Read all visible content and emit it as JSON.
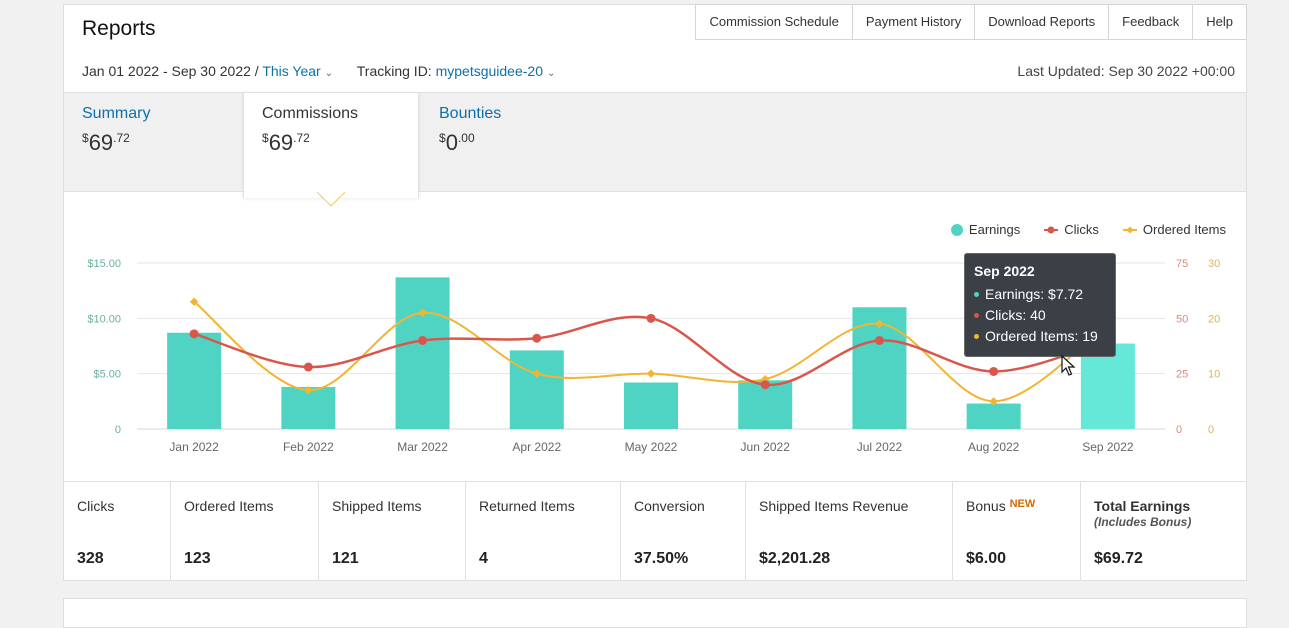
{
  "header": {
    "title": "Reports",
    "links": [
      "Commission Schedule",
      "Payment History",
      "Download Reports",
      "Feedback",
      "Help"
    ]
  },
  "filters": {
    "date_range": "Jan 01 2022 - Sep 30 2022 / ",
    "period": "This Year",
    "tracking_label": "Tracking ID: ",
    "tracking_id": "mypetsguidee-20",
    "last_updated": "Last Updated: Sep 30 2022 +00:00"
  },
  "tabs": [
    {
      "label": "Summary",
      "dollar": "$",
      "whole": "69",
      "cents": ".72"
    },
    {
      "label": "Commissions",
      "dollar": "$",
      "whole": "69",
      "cents": ".72"
    },
    {
      "label": "Bounties",
      "dollar": "$",
      "whole": "0",
      "cents": ".00"
    }
  ],
  "legend": {
    "earnings": "Earnings",
    "clicks": "Clicks",
    "ordered": "Ordered Items"
  },
  "colors": {
    "earnings": "#4fd4c4",
    "earnings_hover": "#66e8d8",
    "clicks": "#d9574a",
    "ordered": "#f2b533",
    "link": "#0f6faa"
  },
  "chart_data": {
    "type": "bar",
    "categories": [
      "Jan 2022",
      "Feb 2022",
      "Mar 2022",
      "Apr 2022",
      "May 2022",
      "Jun 2022",
      "Jul 2022",
      "Aug 2022",
      "Sep 2022"
    ],
    "series": [
      {
        "name": "Earnings",
        "type": "bar",
        "axis": "left",
        "values": [
          8.7,
          3.8,
          13.7,
          7.1,
          4.2,
          4.4,
          11.0,
          2.3,
          7.72
        ]
      },
      {
        "name": "Clicks",
        "type": "line",
        "axis": "right1",
        "values": [
          43,
          28,
          40,
          41,
          50,
          20,
          40,
          26,
          40
        ]
      },
      {
        "name": "Ordered Items",
        "type": "line",
        "axis": "right2",
        "values": [
          23,
          7,
          21,
          10,
          10,
          9,
          19,
          5,
          19
        ]
      }
    ],
    "yleft": {
      "ticks": [
        "0",
        "$5.00",
        "$10.00",
        "$15.00"
      ],
      "max": 15
    },
    "yright1": {
      "ticks": [
        "0",
        "25",
        "50",
        "75"
      ],
      "max": 75
    },
    "yright2": {
      "ticks": [
        "0",
        "10",
        "20",
        "30"
      ],
      "max": 30
    },
    "legend_position": "top-right",
    "grid": true
  },
  "tooltip": {
    "title": "Sep 2022",
    "earnings": "Earnings: $7.72",
    "clicks": "Clicks: 40",
    "ordered": "Ordered Items: 19"
  },
  "stats": [
    {
      "label": "Clicks",
      "value": "328"
    },
    {
      "label": "Ordered Items",
      "value": "123"
    },
    {
      "label": "Shipped Items",
      "value": "121"
    },
    {
      "label": "Returned Items",
      "value": "4"
    },
    {
      "label": "Conversion",
      "value": "37.50%"
    },
    {
      "label": "Shipped Items Revenue",
      "value": "$2,201.28"
    },
    {
      "label": "Bonus",
      "badge": "NEW",
      "value": "$6.00"
    },
    {
      "label": "Total Earnings",
      "sub": "(Includes Bonus)",
      "value": "$69.72"
    }
  ]
}
